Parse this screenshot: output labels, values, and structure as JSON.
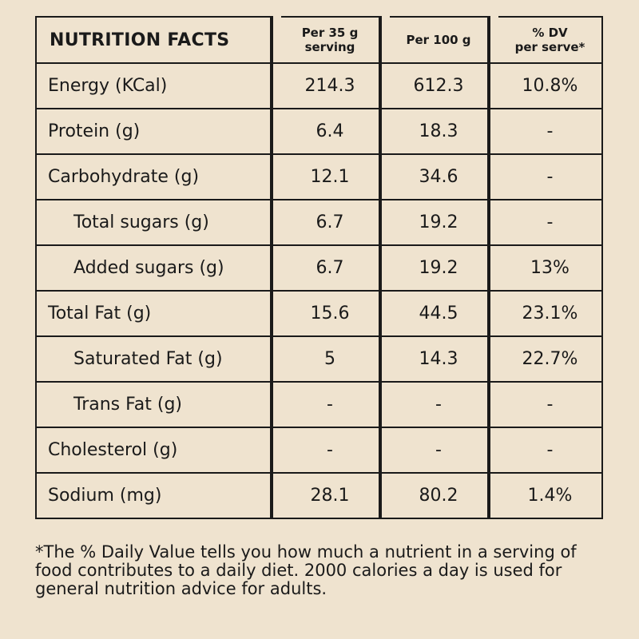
{
  "header": {
    "title": "NUTRITION FACTS",
    "per_serving_line1": "Per 35 g",
    "per_serving_line2": "serving",
    "per_100g": "Per 100 g",
    "dv_line1": "% DV",
    "dv_line2": "per serve*"
  },
  "rows": [
    {
      "nutrient": "Energy (KCal)",
      "per_serving": "214.3",
      "per_100g": "612.3",
      "dv": "10.8%"
    },
    {
      "nutrient": "Protein (g)",
      "per_serving": "6.4",
      "per_100g": "18.3",
      "dv": "-"
    },
    {
      "nutrient": "Carbohydrate (g)",
      "per_serving": "12.1",
      "per_100g": "34.6",
      "dv": "-"
    },
    {
      "nutrient": "Total sugars (g)",
      "per_serving": "6.7",
      "per_100g": "19.2",
      "dv": "-"
    },
    {
      "nutrient": "Added sugars (g)",
      "per_serving": "6.7",
      "per_100g": "19.2",
      "dv": "13%"
    },
    {
      "nutrient": "Total Fat (g)",
      "per_serving": "15.6",
      "per_100g": "44.5",
      "dv": "23.1%"
    },
    {
      "nutrient": "Saturated Fat (g)",
      "per_serving": "5",
      "per_100g": "14.3",
      "dv": "22.7%"
    },
    {
      "nutrient": "Trans Fat (g)",
      "per_serving": "-",
      "per_100g": "-",
      "dv": "-"
    },
    {
      "nutrient": "Cholesterol (g)",
      "per_serving": "-",
      "per_100g": "-",
      "dv": "-"
    },
    {
      "nutrient": "Sodium (mg)",
      "per_serving": "28.1",
      "per_100g": "80.2",
      "dv": "1.4%"
    }
  ],
  "footnote": "*The % Daily Value tells you how much a nutrient in a serving of food contributes to a daily diet. 2000 calories a day is used for general nutrition advice for adults.",
  "colors": {
    "background": "#efe3cf",
    "text": "#1a1a1a"
  }
}
